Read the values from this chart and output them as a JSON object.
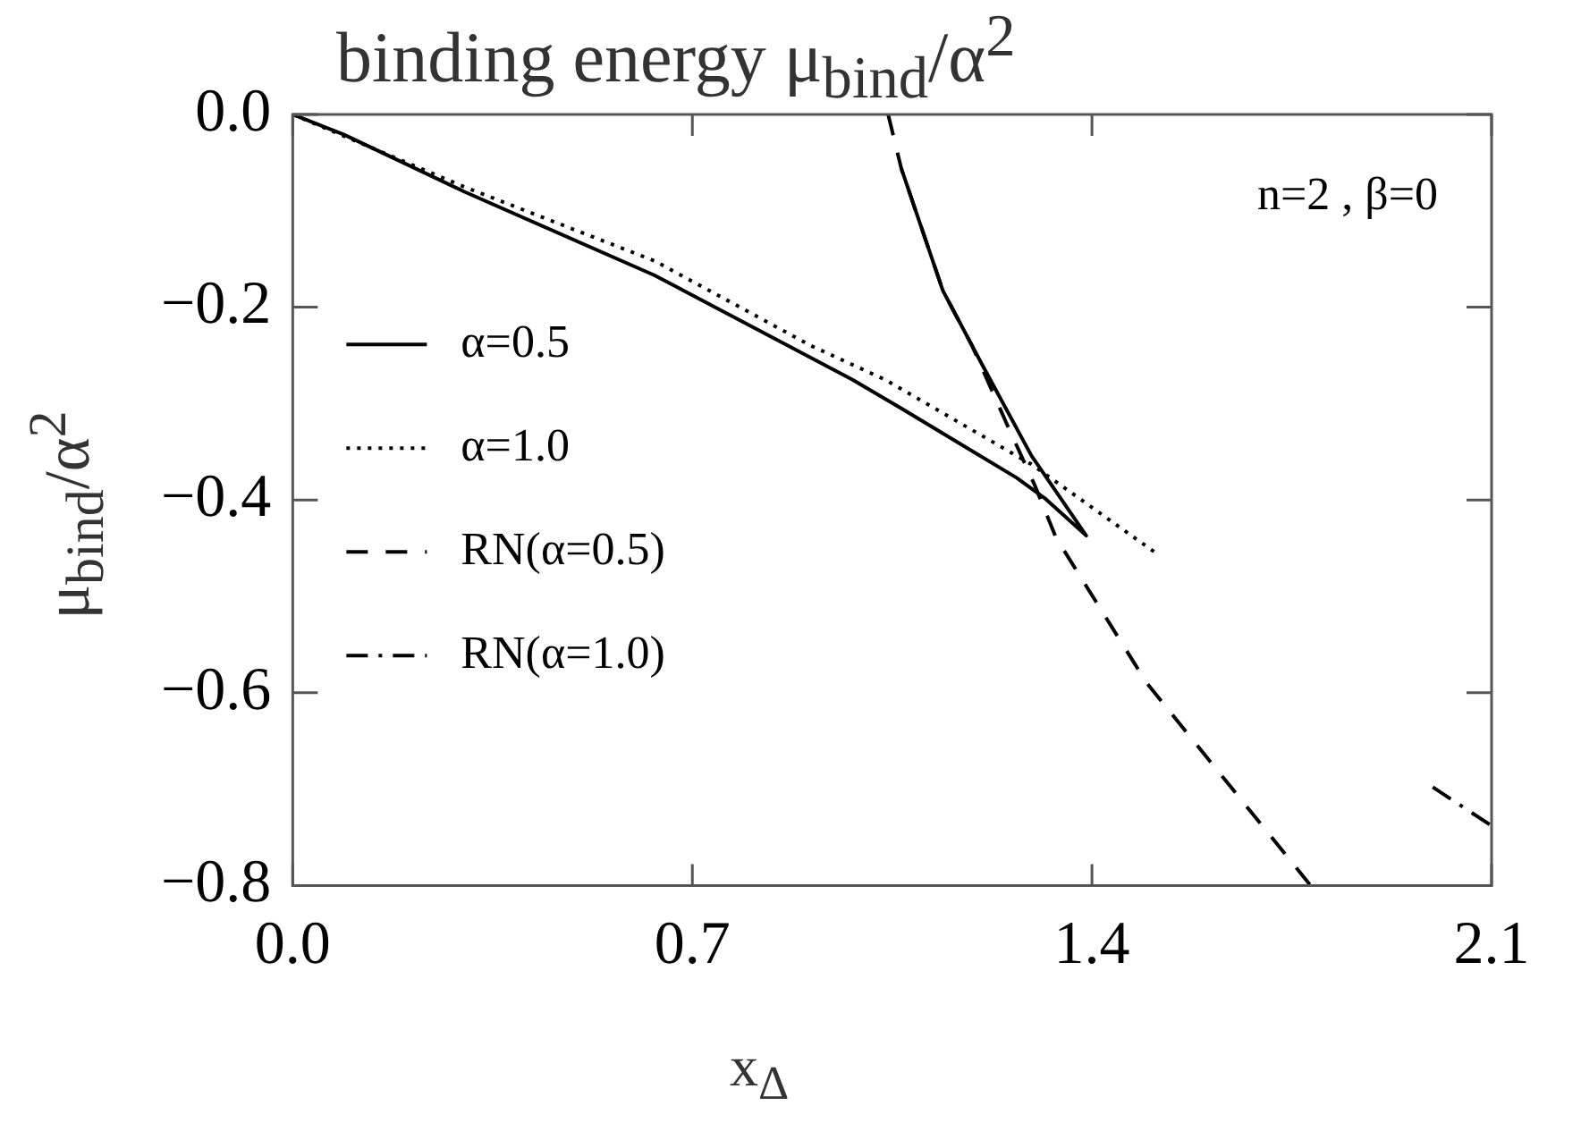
{
  "chart_data": {
    "type": "line",
    "title": "binding energy μ$_{bind}$/α$^{2}$",
    "xlabel": "x$_{Δ}$",
    "ylabel": "μ$_{bind}$/α$^{2}$",
    "annotations": [
      "n=2 , β=0"
    ],
    "xlim": [
      0,
      2.1
    ],
    "xticks": [
      {
        "value": 0,
        "label": "0.0"
      },
      0.7,
      1.4,
      2.1
    ],
    "ylim": [
      -0.8,
      0
    ],
    "yticks": [
      {
        "value": -0.8,
        "label": "−0.8"
      },
      {
        "value": -0.6,
        "label": "−0.6"
      },
      {
        "value": -0.4,
        "label": "−0.4"
      },
      {
        "value": -0.2,
        "label": "−0.2"
      },
      {
        "value": 0,
        "label": "0.0"
      }
    ],
    "grid": false,
    "legend": "left",
    "marker": "none",
    "series": [
      {
        "name": "α=0.5",
        "color": "#000000",
        "line_style": "solid",
        "x": [
          0,
          0.09,
          0.3,
          0.634,
          0.98,
          1.066,
          1.268,
          1.317,
          1.39,
          1.294,
          1.208,
          1.139,
          1.066
        ],
        "values": [
          0,
          -0.021,
          -0.08,
          -0.167,
          -0.275,
          -0.305,
          -0.377,
          -0.398,
          -0.437,
          -0.354,
          -0.26,
          -0.183,
          -0.056
        ]
      },
      {
        "name": "α=1.0",
        "color": "#000000",
        "line_style": "dotted",
        "x": [
          0,
          0.3,
          0.634,
          0.908,
          1.037,
          1.294,
          1.512
        ],
        "values": [
          0,
          -0.075,
          -0.152,
          -0.24,
          -0.275,
          -0.363,
          -0.455
        ]
      },
      {
        "name": "RN(α=0.5)",
        "color": "#000000",
        "line_style": "dashed",
        "x": [
          1.043,
          1.066,
          1.139,
          1.19,
          1.25,
          1.3,
          1.337,
          1.496,
          1.783
        ],
        "values": [
          0,
          -0.056,
          -0.183,
          -0.24,
          -0.32,
          -0.385,
          -0.439,
          -0.59,
          -0.8
        ]
      },
      {
        "name": "RN(α=1.0)",
        "color": "#000000",
        "line_style": "dashdot",
        "x": [
          1.997,
          2.1
        ],
        "values": [
          -0.698,
          -0.738
        ]
      }
    ]
  }
}
